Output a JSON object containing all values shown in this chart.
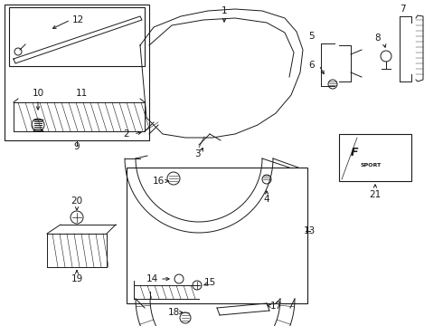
{
  "bg_color": "#ffffff",
  "line_color": "#1a1a1a",
  "fig_w": 4.9,
  "fig_h": 3.6,
  "dpi": 100,
  "lw": 0.7,
  "font_size": 7.5
}
